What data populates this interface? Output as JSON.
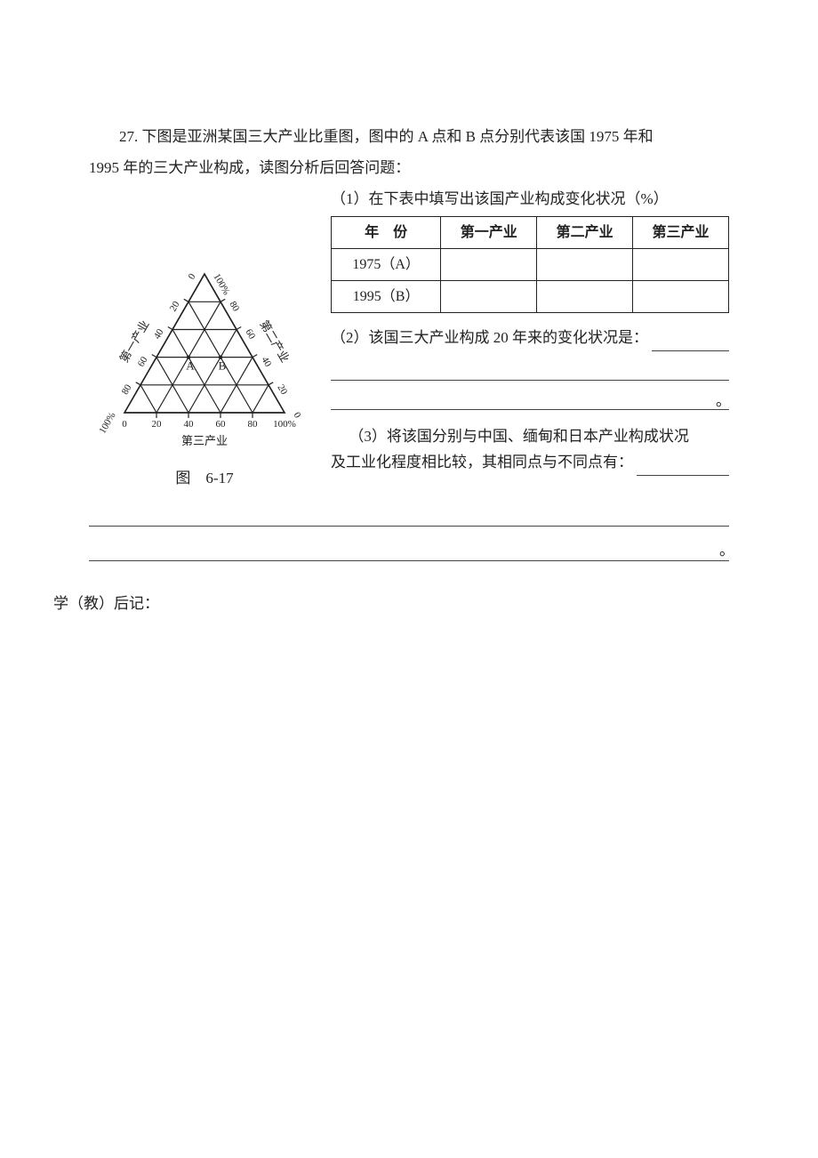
{
  "question": {
    "number": "27.",
    "intro_line1": "27. 下图是亚洲某国三大产业比重图，图中的 A 点和 B 点分别代表该国 1975 年和",
    "intro_line2": "1995 年的三大产业构成，读图分析后回答问题：",
    "sub1": "（1）在下表中填写出该国产业构成变化状况（%）",
    "sub2_lead": "（2）该国三大产业构成 20 年来的变化状况是：",
    "sub3_line1": "（3）将该国分别与中国、缅甸和日本产业构成状况",
    "sub3_line2_lead": "及工业化程度相比较，其相同点与不同点有：",
    "period": "。"
  },
  "table": {
    "headers": {
      "year": "年　份",
      "c1": "第一产业",
      "c2": "第二产业",
      "c3": "第三产业"
    },
    "rows": [
      {
        "year": "1975（A）",
        "c1": "",
        "c2": "",
        "c3": ""
      },
      {
        "year": "1995（B）",
        "c1": "",
        "c2": "",
        "c3": ""
      }
    ]
  },
  "chart": {
    "type": "ternary",
    "fig_label": "图　6-17",
    "axis_labels": {
      "left": "第一产业",
      "right": "第二产业",
      "bottom": "第三产业"
    },
    "ticks": [
      "0",
      "20",
      "40",
      "60",
      "80",
      "100%"
    ],
    "tick_values": [
      0,
      20,
      40,
      60,
      80,
      100
    ],
    "corner_top": "100%",
    "corner_left": "100%",
    "corner_right_bot": "100%",
    "zeros": {
      "top_left": "0",
      "top_right": "0",
      "bot_right": "0"
    },
    "points": {
      "A": {
        "primary": 40,
        "secondary": 40,
        "tertiary": 20,
        "label": "A"
      },
      "B": {
        "primary": 20,
        "secondary": 40,
        "tertiary": 40,
        "label": "B"
      }
    },
    "colors": {
      "line": "#222222",
      "grid": "#222222",
      "point_fill": "none",
      "text": "#222222",
      "bg": "#ffffff"
    },
    "line_width": 1.2,
    "font_size_ticks": 11,
    "font_size_axis": 13,
    "font_size_point": 13
  },
  "post_note": "学（教）后记："
}
